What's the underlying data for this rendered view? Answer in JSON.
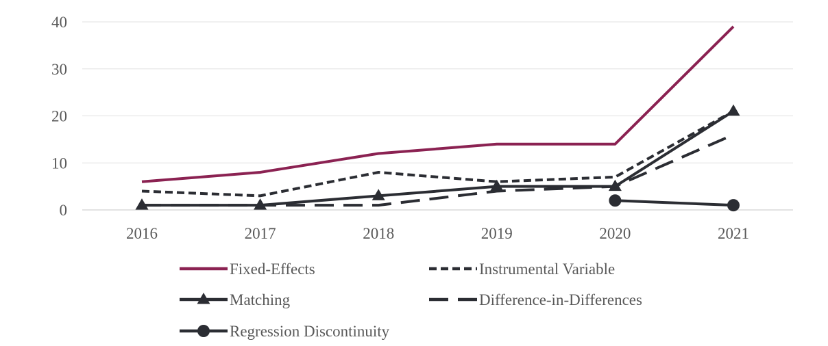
{
  "chart_data": {
    "type": "line",
    "categories": [
      "2016",
      "2017",
      "2018",
      "2019",
      "2020",
      "2021"
    ],
    "ylim": [
      0,
      40
    ],
    "yticks": [
      0,
      10,
      20,
      30,
      40
    ],
    "grid": true,
    "legend_position": "bottom",
    "series": [
      {
        "name": "Fixed-Effects",
        "values": [
          6,
          8,
          12,
          14,
          14,
          39
        ],
        "color": "#8B2252",
        "style": "solid",
        "marker": "none"
      },
      {
        "name": "Instrumental Variable",
        "values": [
          4,
          3,
          8,
          6,
          7,
          21
        ],
        "color": "#2B2D33",
        "style": "dotted",
        "marker": "none"
      },
      {
        "name": "Matching",
        "values": [
          1,
          1,
          3,
          5,
          5,
          21
        ],
        "color": "#2B2D33",
        "style": "solid",
        "marker": "triangle"
      },
      {
        "name": "Difference-in-Differences",
        "values": [
          1,
          1,
          1,
          4,
          5,
          16
        ],
        "color": "#2B2D33",
        "style": "dashed",
        "marker": "none"
      },
      {
        "name": "Regression Discontinuity",
        "values": [
          null,
          null,
          null,
          null,
          2,
          1
        ],
        "color": "#2B2D33",
        "style": "solid",
        "marker": "circle"
      }
    ]
  }
}
